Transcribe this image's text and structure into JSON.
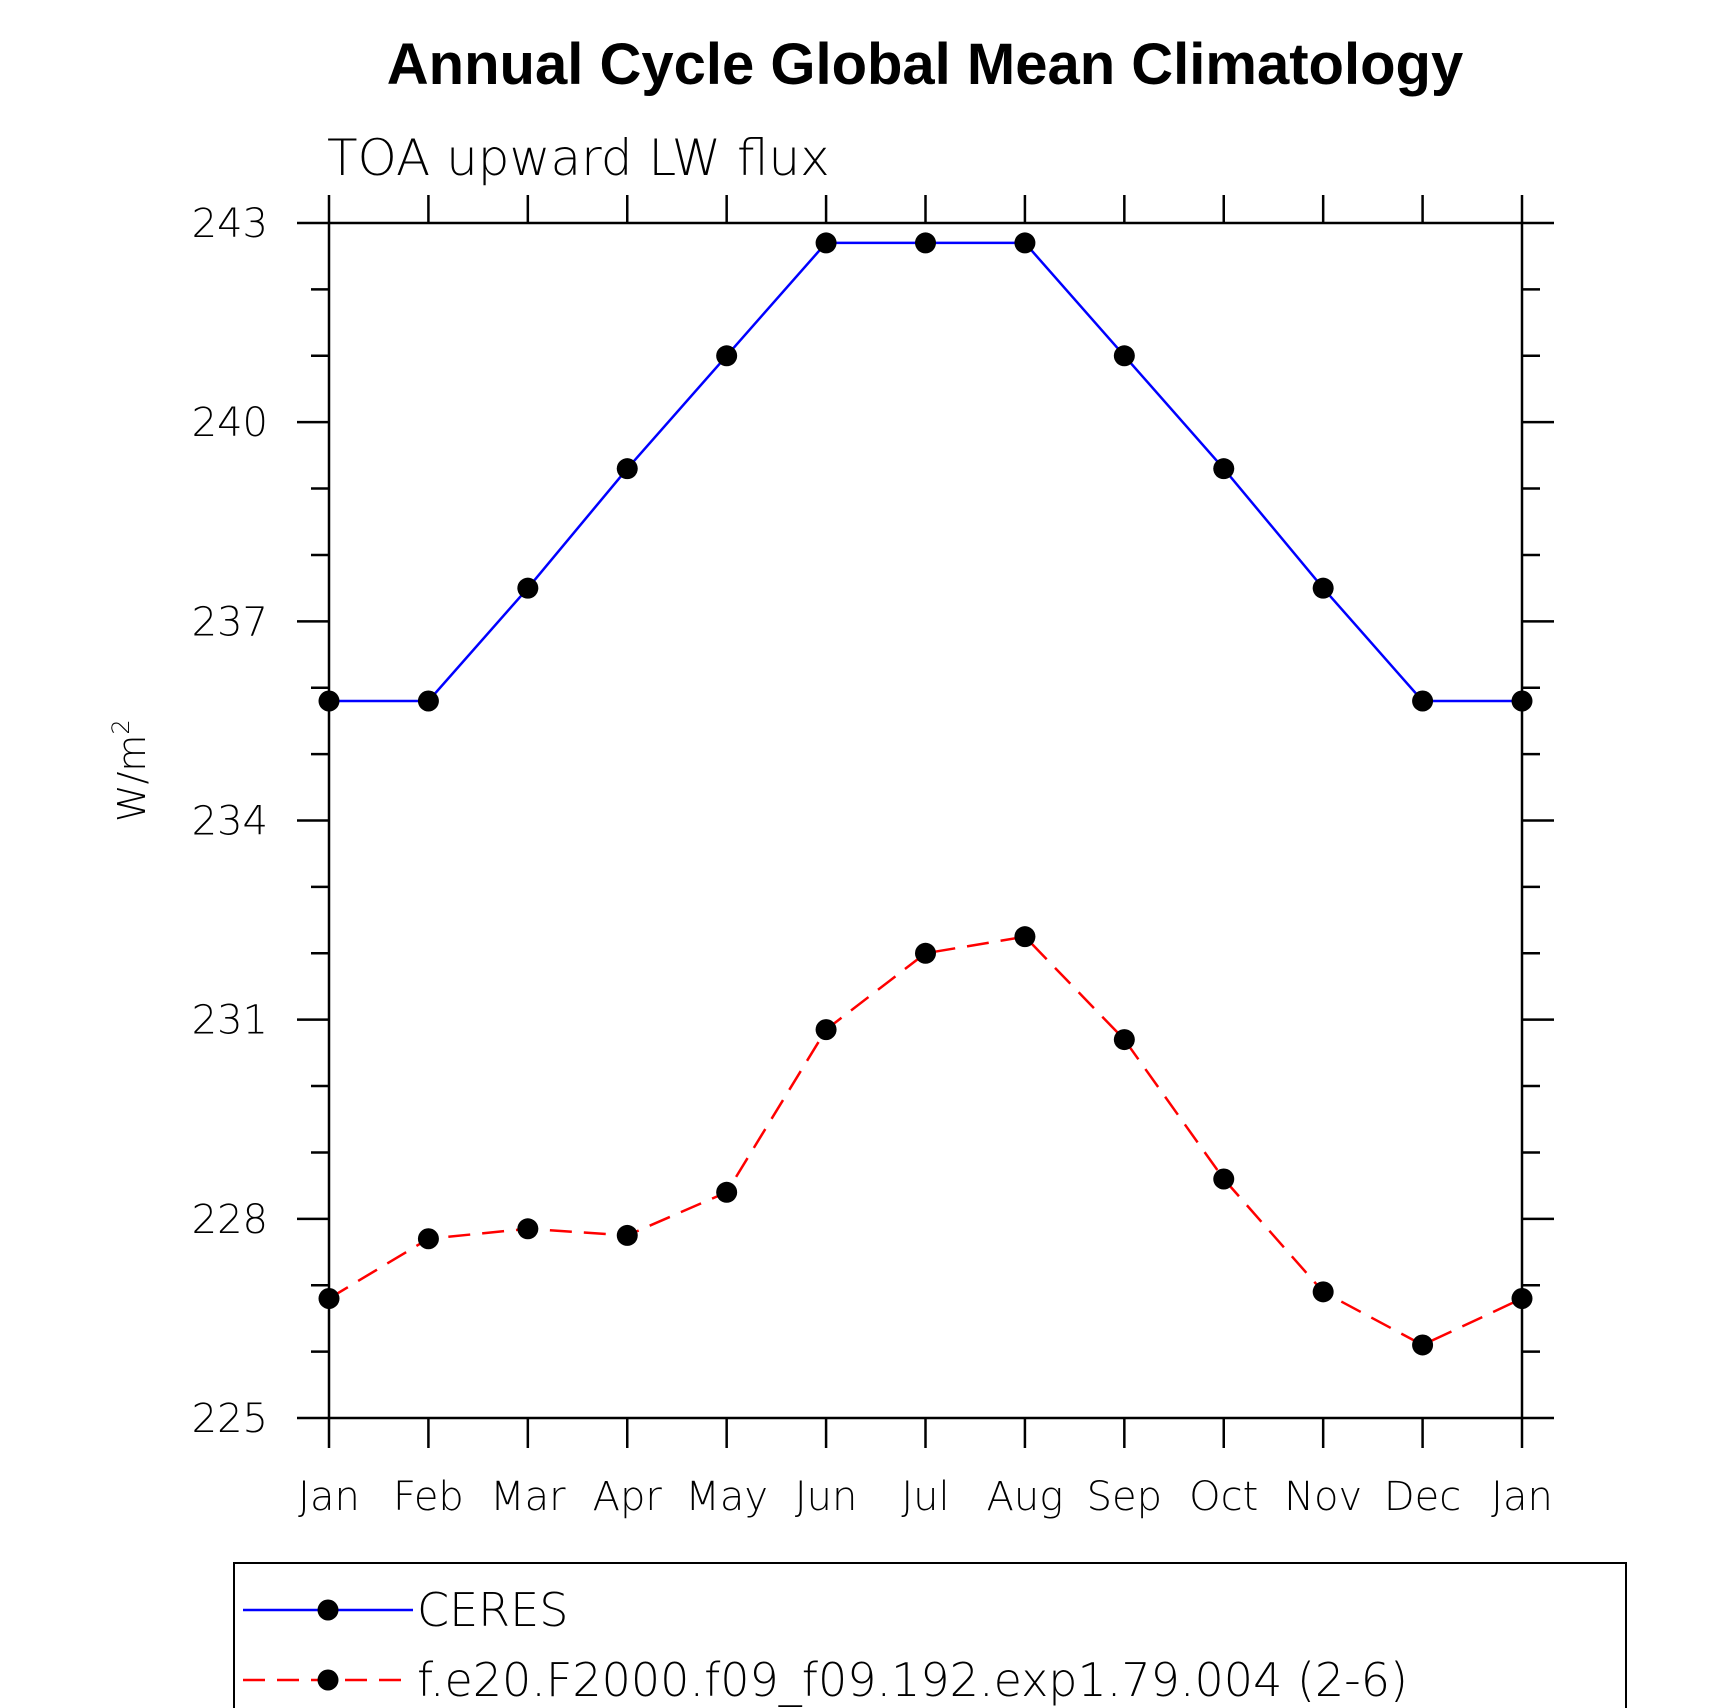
{
  "chart_data": {
    "type": "line",
    "title": "Annual Cycle Global Mean Climatology",
    "subtitle": "TOA upward LW flux",
    "ylabel": "W/m",
    "ylabel_superscript": "2",
    "xlabel": "",
    "categories": [
      "Jan",
      "Feb",
      "Mar",
      "Apr",
      "May",
      "Jun",
      "Jul",
      "Aug",
      "Sep",
      "Oct",
      "Nov",
      "Dec",
      "Jan"
    ],
    "ylim": [
      225,
      243
    ],
    "yticks": [
      "225",
      "228",
      "231",
      "234",
      "237",
      "240",
      "243"
    ],
    "grid": false,
    "legend_position": "bottom",
    "series": [
      {
        "name": "CERES",
        "color": "#0000ff",
        "dash": "solid",
        "marker": "filled-circle",
        "values": [
          235.8,
          235.8,
          237.5,
          239.3,
          241.0,
          242.7,
          242.7,
          242.7,
          241.0,
          239.3,
          237.5,
          235.8,
          235.8
        ]
      },
      {
        "name": "f.e20.F2000.f09_f09.192.exp1.79.004 (2-6)",
        "color": "#ff0000",
        "dash": "dashed",
        "marker": "filled-circle",
        "values": [
          226.8,
          227.7,
          227.85,
          227.75,
          228.4,
          230.85,
          232.0,
          232.25,
          230.7,
          228.6,
          226.9,
          226.1,
          226.8
        ]
      }
    ]
  }
}
